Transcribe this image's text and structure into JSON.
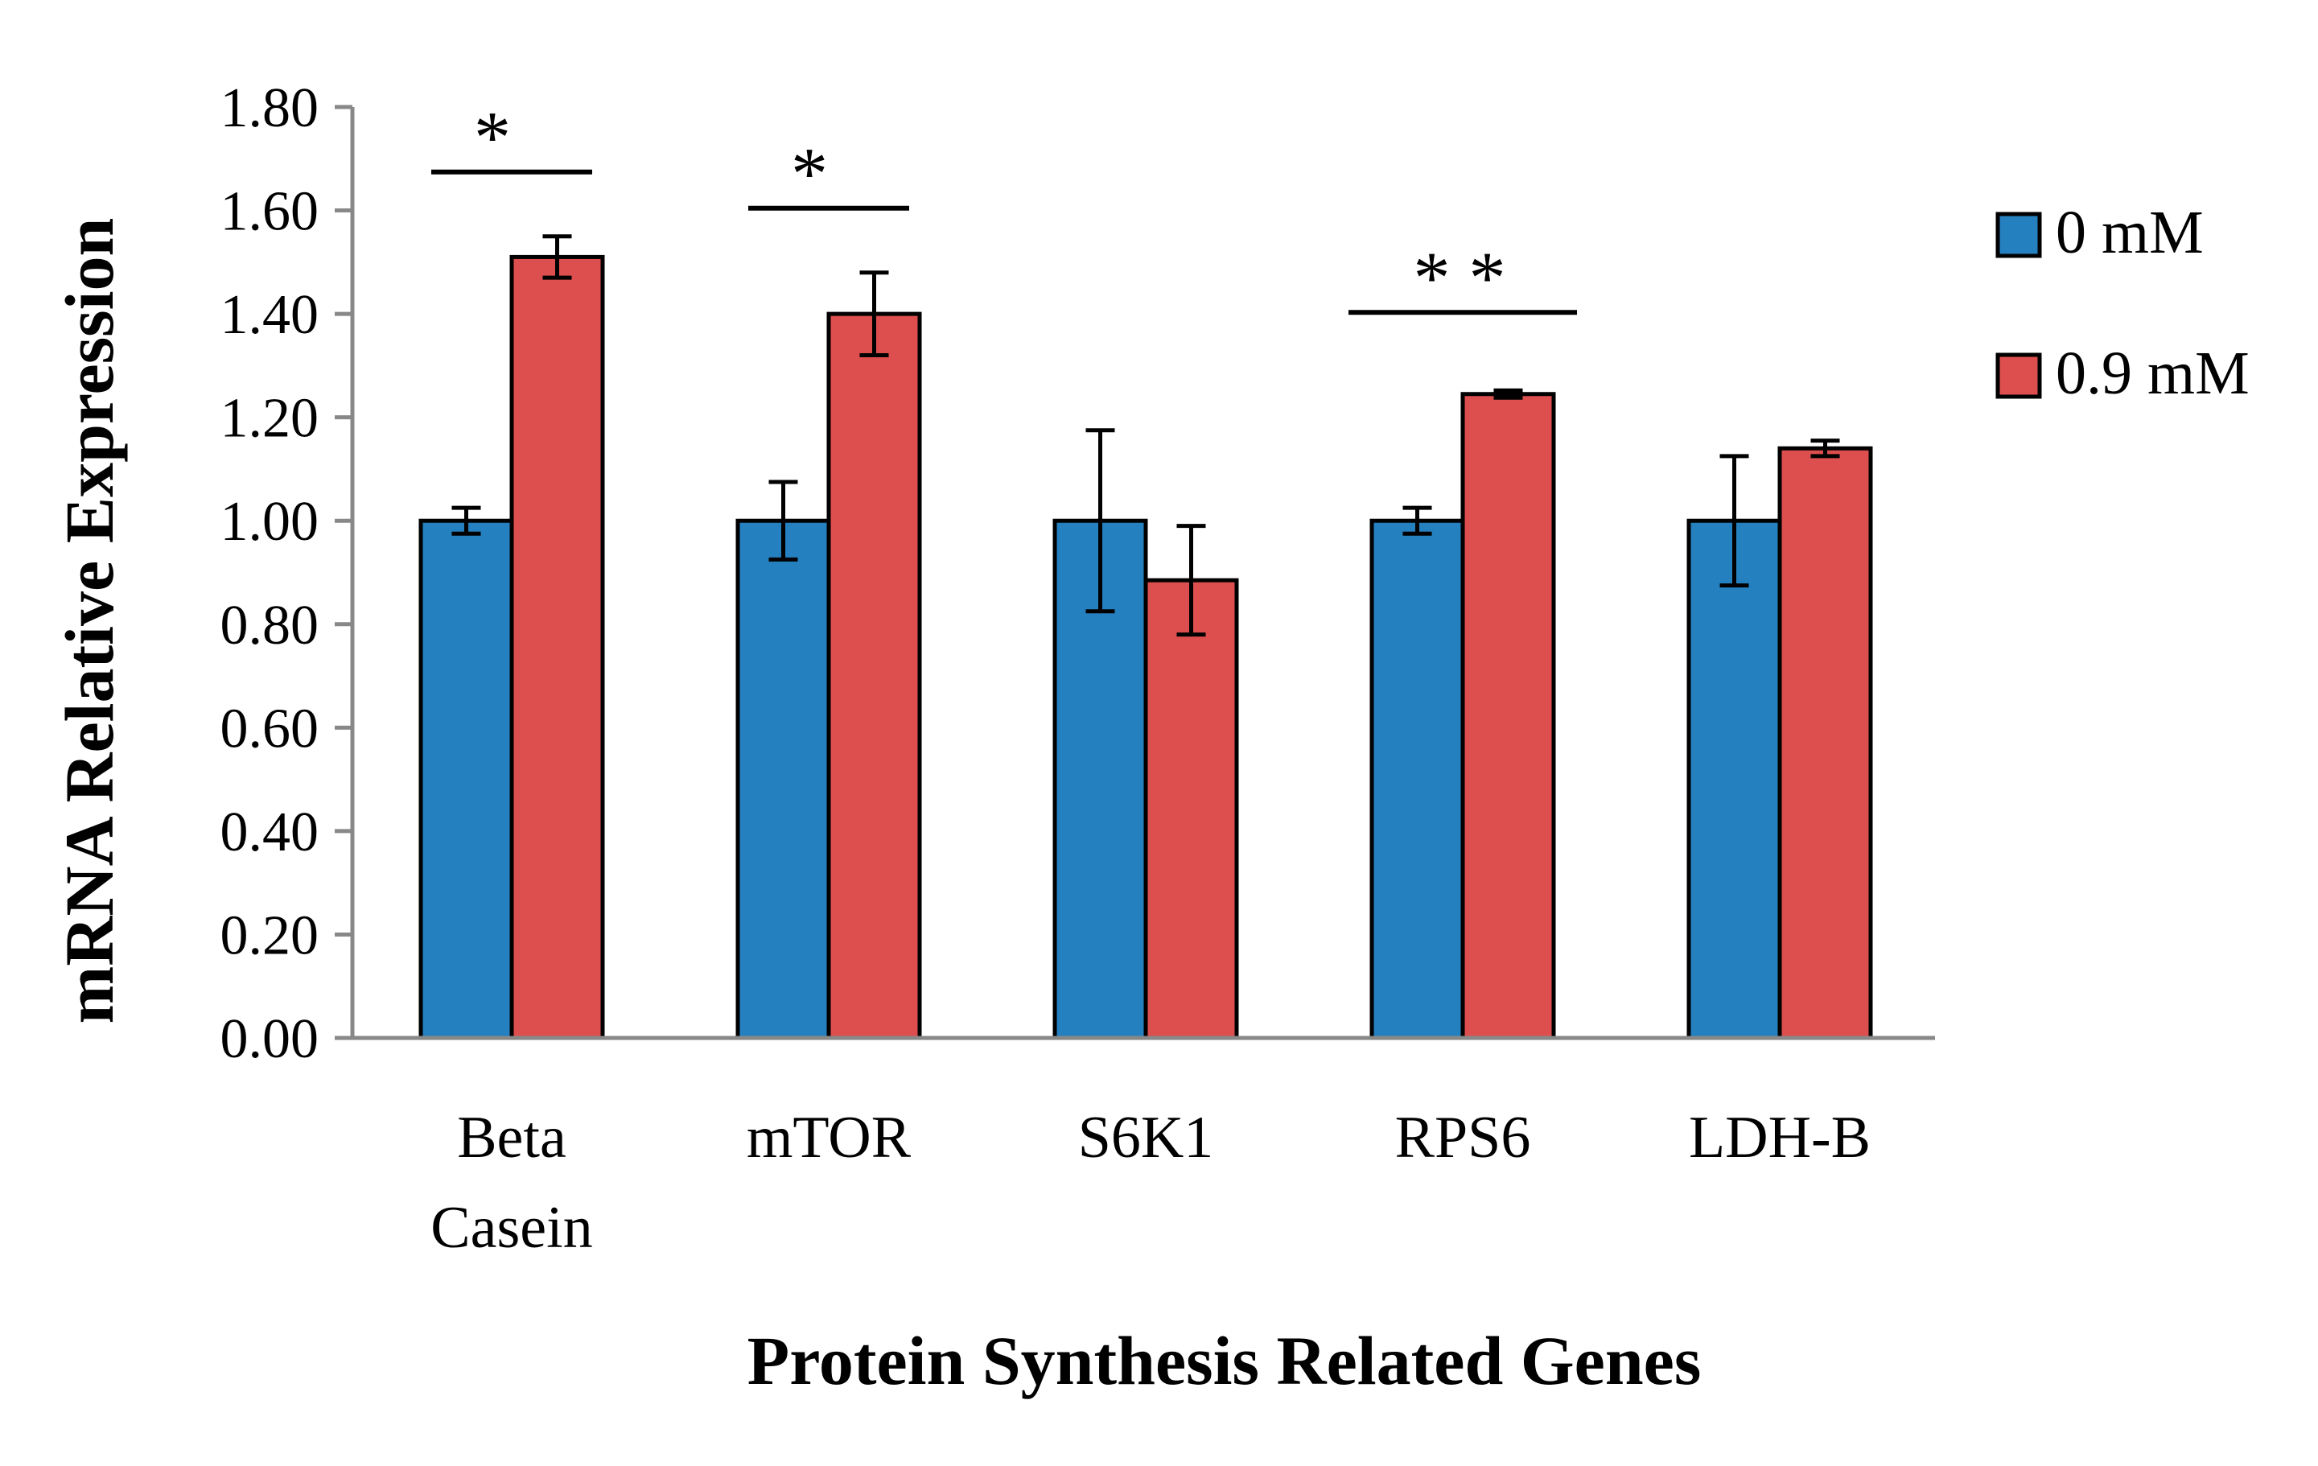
{
  "chart_data": {
    "type": "bar",
    "xlabel": "Protein Synthesis Related Genes",
    "ylabel": "mRNA Relative Expression",
    "ylim": [
      0,
      1.8
    ],
    "yticks": [
      "0.00",
      "0.20",
      "0.40",
      "0.60",
      "0.80",
      "1.00",
      "1.20",
      "1.40",
      "1.60",
      "1.80"
    ],
    "grid": false,
    "legend_position": "right",
    "categories": [
      [
        "Beta",
        "Casein"
      ],
      [
        "mTOR"
      ],
      [
        "S6K1"
      ],
      [
        "RPS6"
      ],
      [
        "LDH-B"
      ]
    ],
    "series": [
      {
        "name": "0 mM",
        "color": "#2580c0",
        "values": [
          1.0,
          1.0,
          1.0,
          1.0,
          1.0
        ],
        "errors": [
          0.025,
          0.075,
          0.175,
          0.025,
          0.125
        ]
      },
      {
        "name": "0.9 mM",
        "color": "#dd4e4e",
        "values": [
          1.51,
          1.4,
          0.885,
          1.245,
          1.14
        ],
        "errors": [
          0.04,
          0.08,
          0.105,
          0.007,
          0.015
        ]
      }
    ],
    "annotations": [
      {
        "category": 0,
        "text": "*"
      },
      {
        "category": 1,
        "text": "*"
      },
      {
        "category": 3,
        "text": "* *"
      }
    ]
  }
}
